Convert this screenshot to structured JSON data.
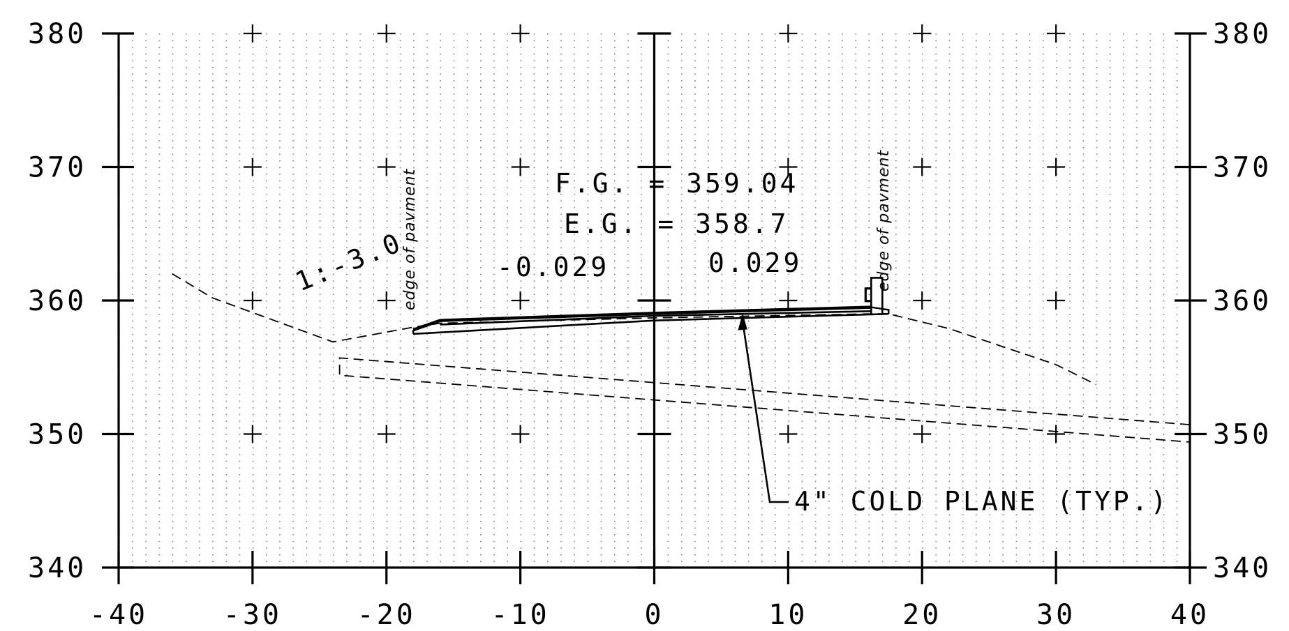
{
  "chart_data": {
    "type": "cross-section",
    "x_range": [
      -40,
      40
    ],
    "y_range": [
      340,
      380
    ],
    "x_ticks": [
      -40,
      -30,
      -20,
      -10,
      0,
      10,
      20,
      30,
      40
    ],
    "y_ticks": [
      340,
      350,
      360,
      370,
      380
    ],
    "x_tick_labels": [
      "-40",
      "-30",
      "-20",
      "-10",
      "0",
      "10",
      "20",
      "30",
      "40"
    ],
    "y_tick_labels": [
      "340",
      "350",
      "360",
      "370",
      "380"
    ],
    "grid": "dotted",
    "annotations": {
      "fg": "F.G. = 359.04",
      "eg": "E.G. = 358.7",
      "slope_left": "-0.029",
      "slope_right": "0.029",
      "side_slope": "1:-3.0",
      "edge_left": "edge of pavment",
      "edge_right": "edge of pavment",
      "callout": "4\" COLD PLANE (TYP.)"
    },
    "existing_ground": [
      [
        -36,
        362.0
      ],
      [
        -33,
        360.2
      ],
      [
        -24,
        356.9
      ],
      [
        -18,
        358.0
      ],
      [
        -16,
        358.3
      ],
      [
        0,
        358.7
      ],
      [
        16.2,
        359.0
      ],
      [
        17.5,
        359.0
      ],
      [
        22,
        357.9
      ],
      [
        30,
        355.2
      ],
      [
        33,
        353.7
      ]
    ],
    "subgrade_top": [
      [
        -23.5,
        355.7
      ],
      [
        40,
        350.7
      ]
    ],
    "subgrade_bottom": [
      [
        -23.5,
        354.4
      ],
      [
        40,
        349.4
      ]
    ],
    "proposed_top": [
      [
        -18,
        357.8
      ],
      [
        -16,
        358.5
      ],
      [
        0,
        359.04
      ],
      [
        16.2,
        359.5
      ]
    ],
    "proposed_bottom": [
      [
        -18,
        357.5
      ],
      [
        0,
        358.5
      ],
      [
        17.5,
        359.0
      ]
    ]
  }
}
